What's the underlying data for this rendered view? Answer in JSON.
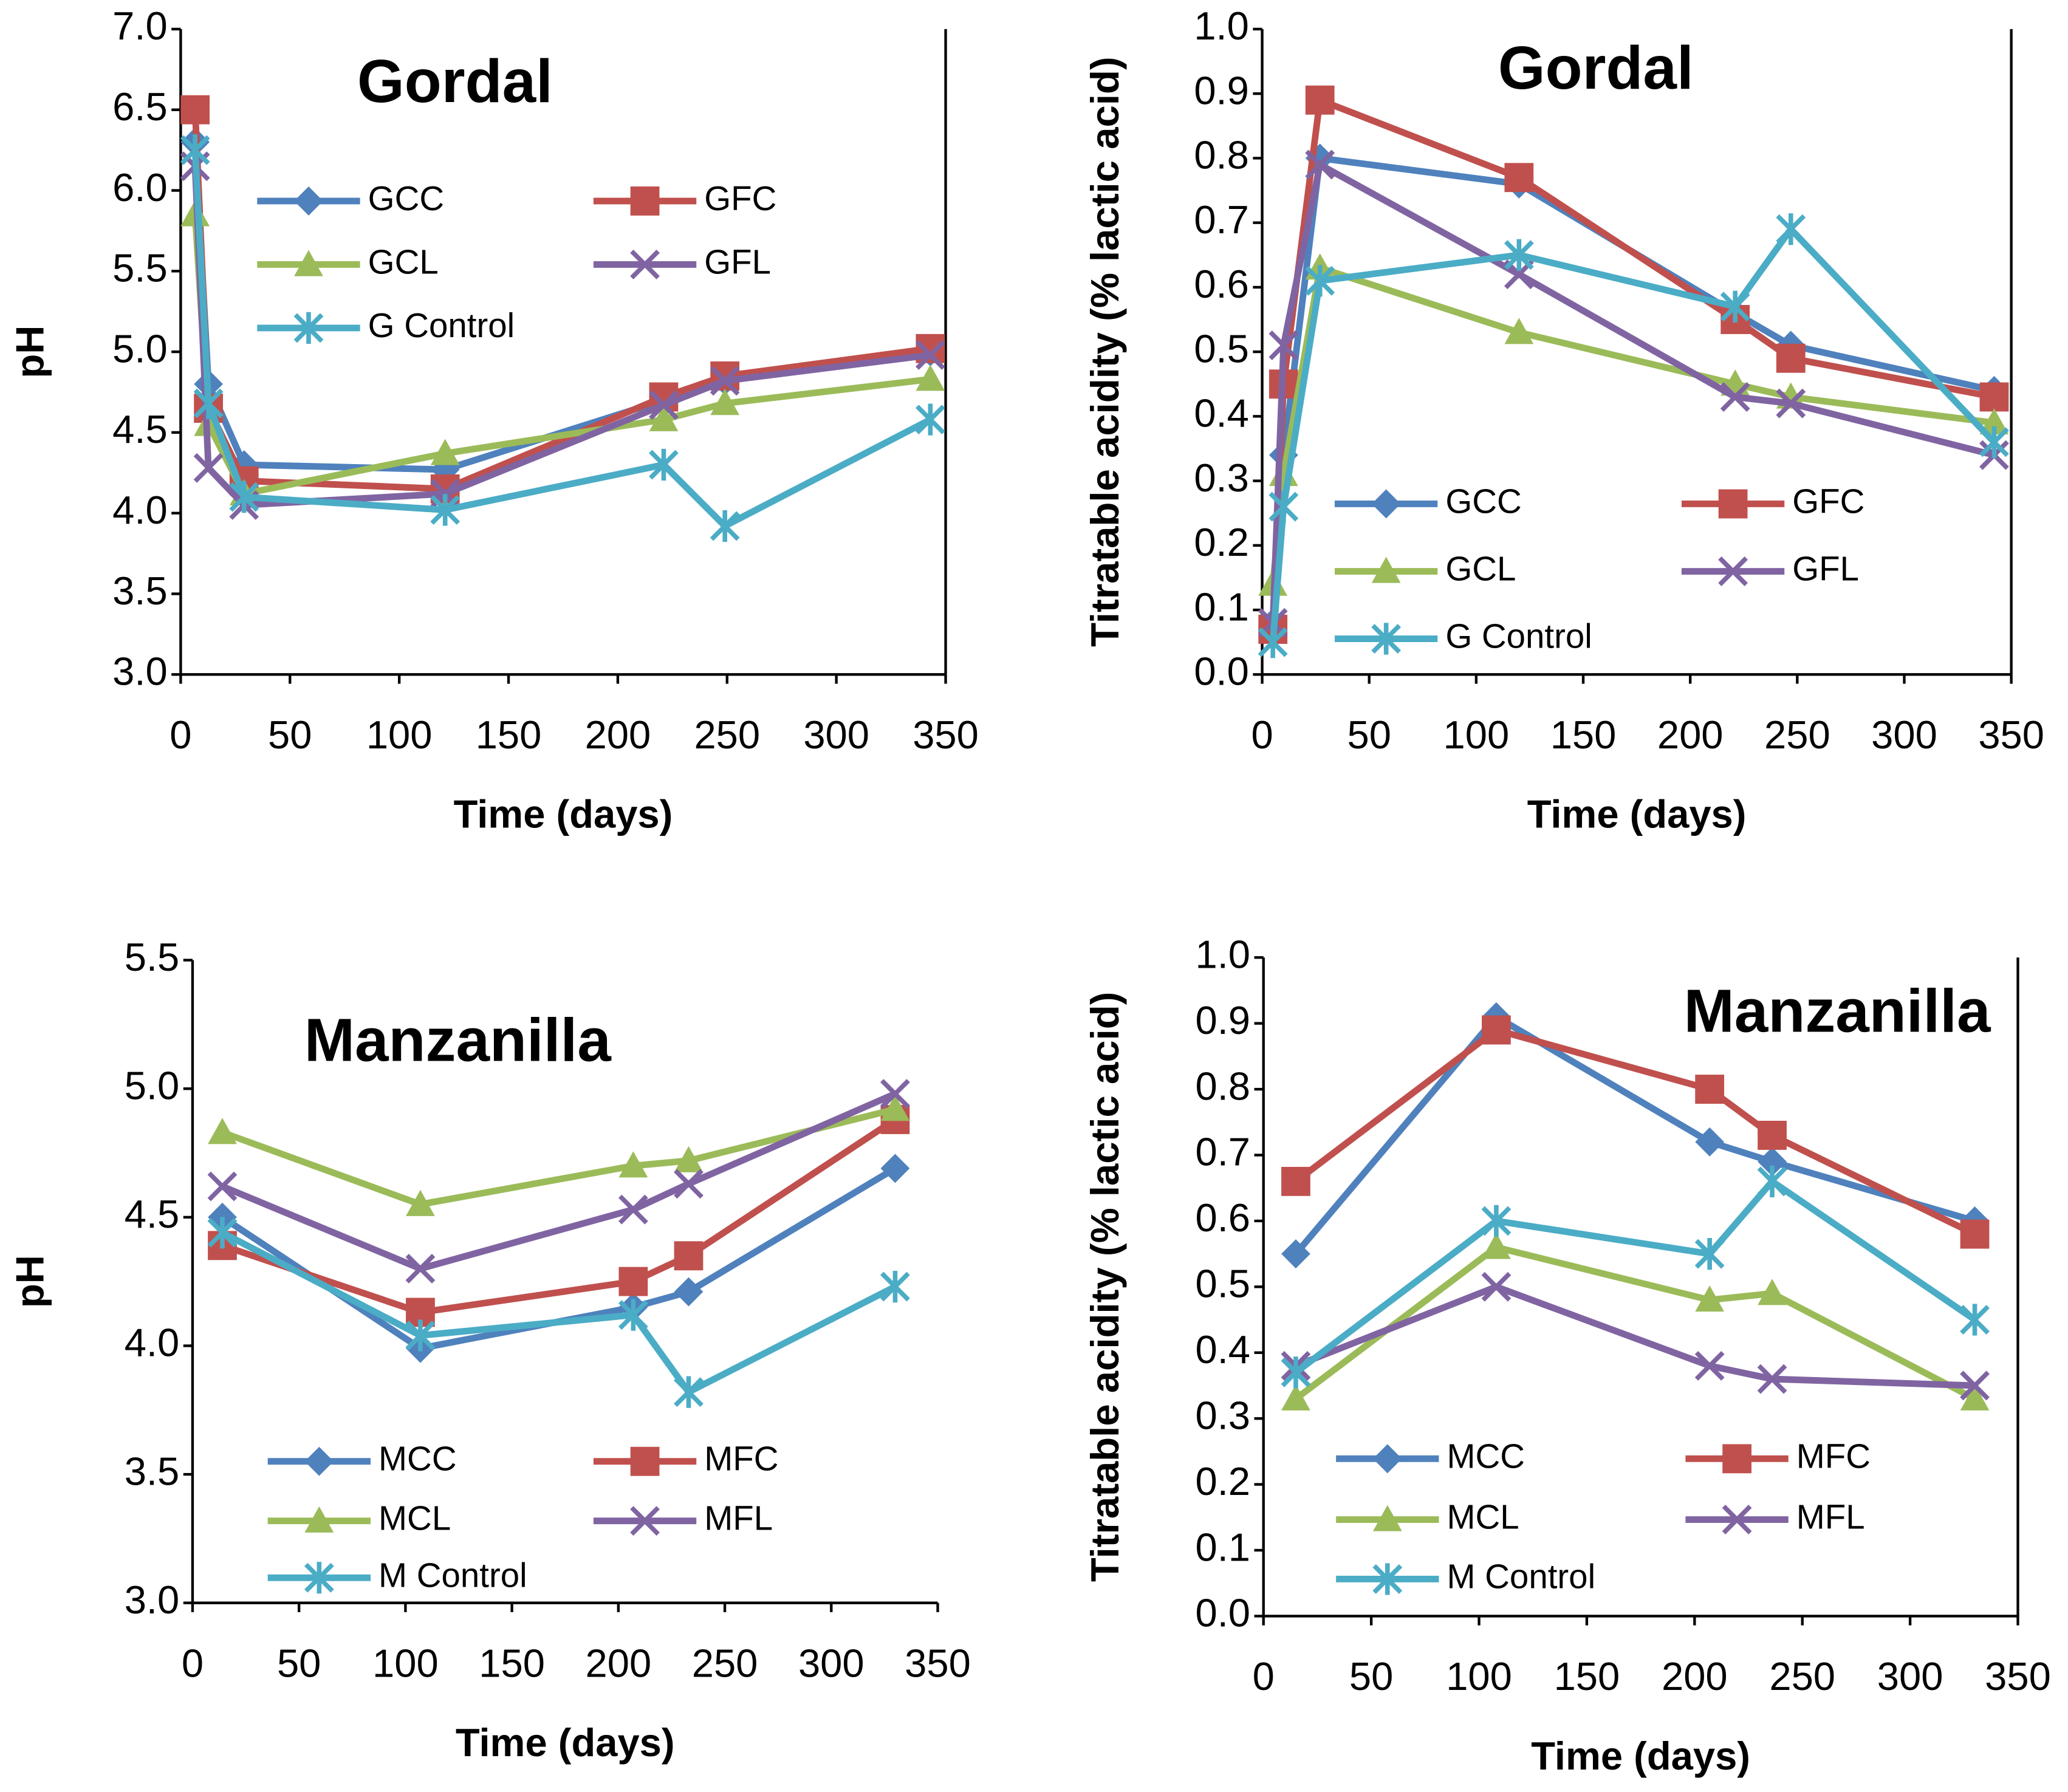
{
  "chart_data": [
    {
      "type": "line",
      "title": "Gordal",
      "x_label": "Time (days)",
      "y_label": "pH",
      "x": [
        6.6,
        12.7,
        29,
        121,
        221,
        249,
        343
      ],
      "xlim": [
        0,
        350
      ],
      "xticks": [
        0,
        50,
        100,
        150,
        200,
        250,
        300,
        350
      ],
      "ylim": [
        3,
        7
      ],
      "yticks": [
        {
          "value": 3,
          "label": "3.0"
        },
        {
          "value": 3.5,
          "label": "3.5"
        },
        {
          "value": 4,
          "label": "4.0"
        },
        {
          "value": 4.5,
          "label": "4.5"
        },
        {
          "value": 5,
          "label": "5.0"
        },
        {
          "value": 5.5,
          "label": "5.5"
        },
        {
          "value": 6,
          "label": "6.0"
        },
        {
          "value": 6.5,
          "label": "6.5"
        },
        {
          "value": 7,
          "label": "7.0"
        }
      ],
      "series": [
        {
          "name": "GCC",
          "color": "#4f81bd",
          "marker": "diamond",
          "values": [
            6.3,
            4.8,
            4.3,
            4.27,
            4.7,
            4.82,
            5.0
          ]
        },
        {
          "name": "GFC",
          "color": "#c0504d",
          "marker": "square",
          "values": [
            6.5,
            4.65,
            4.2,
            4.15,
            4.72,
            4.85,
            5.02
          ]
        },
        {
          "name": "GCL",
          "color": "#9bbb59",
          "marker": "triangle",
          "values": [
            5.85,
            4.55,
            4.12,
            4.37,
            4.58,
            4.68,
            4.83
          ]
        },
        {
          "name": "GFL",
          "color": "#8064a2",
          "marker": "x",
          "values": [
            6.15,
            4.28,
            4.05,
            4.12,
            4.67,
            4.82,
            4.98
          ]
        },
        {
          "name": "G Control",
          "color": "#4bacc6",
          "marker": "star",
          "values": [
            6.25,
            4.68,
            4.1,
            4.02,
            4.3,
            3.92,
            4.58
          ]
        }
      ]
    },
    {
      "type": "line",
      "title": "Gordal",
      "x_label": "Time (days)",
      "y_label": "Titratable acidity (% lactic acid)",
      "x": [
        5,
        10,
        27,
        120,
        221,
        247,
        342
      ],
      "xlim": [
        0,
        350
      ],
      "xticks": [
        0,
        50,
        100,
        150,
        200,
        250,
        300,
        350
      ],
      "ylim": [
        0,
        1
      ],
      "yticks": [
        {
          "value": 0,
          "label": "0.0"
        },
        0.1,
        0.2,
        0.3,
        0.4,
        0.5,
        0.6,
        0.7,
        0.8,
        0.9,
        {
          "value": 1,
          "label": "1.0"
        }
      ],
      "series": [
        {
          "name": "GCC",
          "color": "#4f81bd",
          "marker": "diamond",
          "values": [
            0.08,
            0.34,
            0.8,
            0.76,
            0.56,
            0.51,
            0.44
          ]
        },
        {
          "name": "GFC",
          "color": "#c0504d",
          "marker": "square",
          "values": [
            0.07,
            0.45,
            0.89,
            0.77,
            0.55,
            0.49,
            0.43
          ]
        },
        {
          "name": "GCL",
          "color": "#9bbb59",
          "marker": "triangle",
          "values": [
            0.14,
            0.31,
            0.63,
            0.53,
            0.45,
            0.43,
            0.39
          ]
        },
        {
          "name": "GFL",
          "color": "#8064a2",
          "marker": "x",
          "values": [
            0.08,
            0.51,
            0.79,
            0.62,
            0.43,
            0.42,
            0.34
          ]
        },
        {
          "name": "G Control",
          "color": "#4bacc6",
          "marker": "star",
          "values": [
            0.05,
            0.26,
            0.61,
            0.65,
            0.57,
            0.69,
            0.36
          ]
        }
      ]
    },
    {
      "type": "line",
      "title": "Manzanilla",
      "x_label": "Time (days)",
      "y_label": "pH",
      "x": [
        14,
        107,
        207,
        233,
        330
      ],
      "xlim": [
        0,
        350
      ],
      "xticks": [
        0,
        50,
        100,
        150,
        200,
        250,
        300,
        350
      ],
      "ylim": [
        3,
        5.5
      ],
      "yticks": [
        {
          "value": 3,
          "label": "3.0"
        },
        3.5,
        {
          "value": 4,
          "label": "4.0"
        },
        4.5,
        {
          "value": 5,
          "label": "5.0"
        },
        5.5
      ],
      "series": [
        {
          "name": "MCC",
          "color": "#4f81bd",
          "marker": "diamond",
          "values": [
            4.5,
            3.99,
            4.15,
            4.21,
            4.69
          ]
        },
        {
          "name": "MFC",
          "color": "#c0504d",
          "marker": "square",
          "values": [
            4.39,
            4.13,
            4.25,
            4.35,
            4.88
          ]
        },
        {
          "name": "MCL",
          "color": "#9bbb59",
          "marker": "triangle",
          "values": [
            4.83,
            4.55,
            4.7,
            4.72,
            4.92
          ]
        },
        {
          "name": "MFL",
          "color": "#8064a2",
          "marker": "x",
          "values": [
            4.62,
            4.3,
            4.53,
            4.63,
            4.98
          ]
        },
        {
          "name": "M Control",
          "color": "#4bacc6",
          "marker": "star",
          "values": [
            4.44,
            4.04,
            4.12,
            3.82,
            4.23
          ]
        }
      ]
    },
    {
      "type": "line",
      "title": "Manzanilla",
      "x_label": "Time (days)",
      "y_label": "Titratable acidity (% lactic acid)",
      "x": [
        15,
        108,
        207,
        236,
        330
      ],
      "xlim": [
        0,
        350
      ],
      "xticks": [
        0,
        50,
        100,
        150,
        200,
        250,
        300,
        350
      ],
      "ylim": [
        0,
        1
      ],
      "yticks": [
        {
          "value": 0,
          "label": "0.0"
        },
        0.1,
        0.2,
        0.3,
        0.4,
        0.5,
        0.6,
        0.7,
        0.8,
        0.9,
        {
          "value": 1,
          "label": "1.0"
        }
      ],
      "series": [
        {
          "name": "MCC",
          "color": "#4f81bd",
          "marker": "diamond",
          "values": [
            0.55,
            0.91,
            0.72,
            0.69,
            0.6
          ]
        },
        {
          "name": "MFC",
          "color": "#c0504d",
          "marker": "square",
          "values": [
            0.66,
            0.89,
            0.8,
            0.73,
            0.58
          ]
        },
        {
          "name": "MCL",
          "color": "#9bbb59",
          "marker": "triangle",
          "values": [
            0.33,
            0.56,
            0.48,
            0.49,
            0.33
          ]
        },
        {
          "name": "MFL",
          "color": "#8064a2",
          "marker": "x",
          "values": [
            0.38,
            0.5,
            0.38,
            0.36,
            0.35
          ]
        },
        {
          "name": "M Control",
          "color": "#4bacc6",
          "marker": "star",
          "values": [
            0.37,
            0.6,
            0.55,
            0.66,
            0.45
          ]
        }
      ]
    }
  ]
}
